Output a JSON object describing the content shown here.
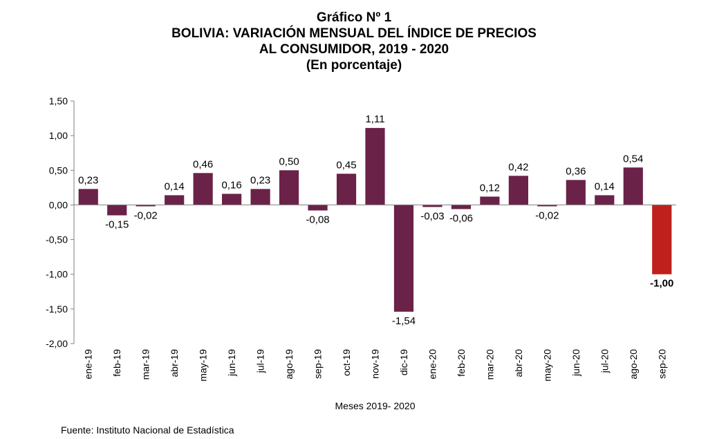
{
  "title": {
    "line1": "Gráfico Nº 1",
    "line2": "BOLIVIA: VARIACIÓN MENSUAL DEL ÍNDICE DE PRECIOS",
    "line3": "AL CONSUMIDOR, 2019 - 2020",
    "line4": "(En porcentaje)"
  },
  "source": "Fuente: Instituto Nacional de Estadística",
  "colors": {
    "bar": "#6b2248",
    "highlight": "#c0201c",
    "axis": "#7f7f7f"
  },
  "chart_data": {
    "type": "bar",
    "title": "BOLIVIA: VARIACIÓN MENSUAL DEL ÍNDICE DE PRECIOS AL CONSUMIDOR, 2019 - 2020",
    "xlabel": "Meses 2019- 2020",
    "ylabel": "",
    "ylim": [
      -2.0,
      1.5
    ],
    "yticks": [
      "1,50",
      "1,00",
      "0,50",
      "0,00",
      "-0,50",
      "-1,00",
      "-1,50",
      "-2,00"
    ],
    "ytick_values": [
      1.5,
      1.0,
      0.5,
      0.0,
      -0.5,
      -1.0,
      -1.5,
      -2.0
    ],
    "grid": false,
    "categories": [
      "ene-19",
      "feb-19",
      "mar-19",
      "abr-19",
      "may-19",
      "jun-19",
      "jul-19",
      "ago-19",
      "sep-19",
      "oct-19",
      "nov-19",
      "dic-19",
      "ene-20",
      "feb-20",
      "mar-20",
      "abr-20",
      "may-20",
      "jun-20",
      "jul-20",
      "ago-20",
      "sep-20"
    ],
    "values": [
      0.23,
      -0.15,
      -0.02,
      0.14,
      0.46,
      0.16,
      0.23,
      0.5,
      -0.08,
      0.45,
      1.11,
      -1.54,
      -0.03,
      -0.06,
      0.12,
      0.42,
      -0.02,
      0.36,
      0.14,
      0.54,
      -1.0
    ],
    "value_labels": [
      "0,23",
      "-0,15",
      "-0,02",
      "0,14",
      "0,46",
      "0,16",
      "0,23",
      "0,50",
      "-0,08",
      "0,45",
      "1,11",
      "-1,54",
      "-0,03",
      "-0,06",
      "0,12",
      "0,42",
      "-0,02",
      "0,36",
      "0,14",
      "0,54",
      "-1,00"
    ],
    "highlighted": [
      "sep-20"
    ]
  }
}
